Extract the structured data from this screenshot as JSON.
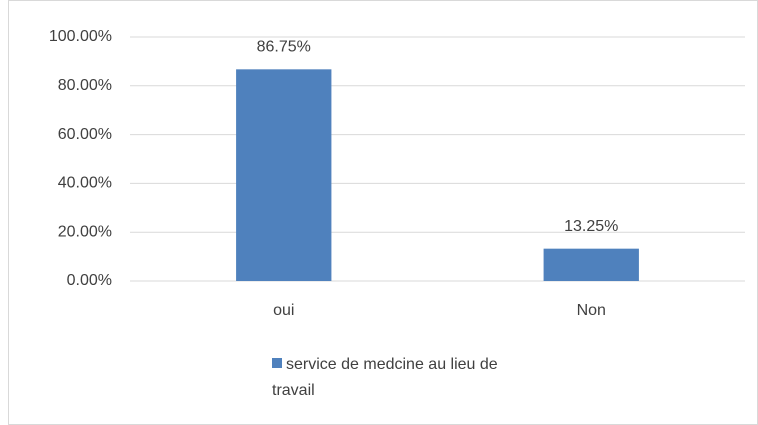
{
  "chart_data": {
    "type": "bar",
    "categories": [
      "oui",
      "Non"
    ],
    "series": [
      {
        "name": "service de medcine au lieu de travail",
        "color": "#4f81bd",
        "values": [
          86.75,
          13.25
        ],
        "value_labels": [
          "86.75%",
          "13.25%"
        ]
      }
    ],
    "ylim": [
      0,
      100
    ],
    "yticks": [
      {
        "value": 0,
        "label": "0.00%"
      },
      {
        "value": 20,
        "label": "20.00%"
      },
      {
        "value": 40,
        "label": "40.00%"
      },
      {
        "value": 60,
        "label": "60.00%"
      },
      {
        "value": 80,
        "label": "80.00%"
      },
      {
        "value": 100,
        "label": "100.00%"
      }
    ],
    "grid": true,
    "legend": "bottom"
  }
}
